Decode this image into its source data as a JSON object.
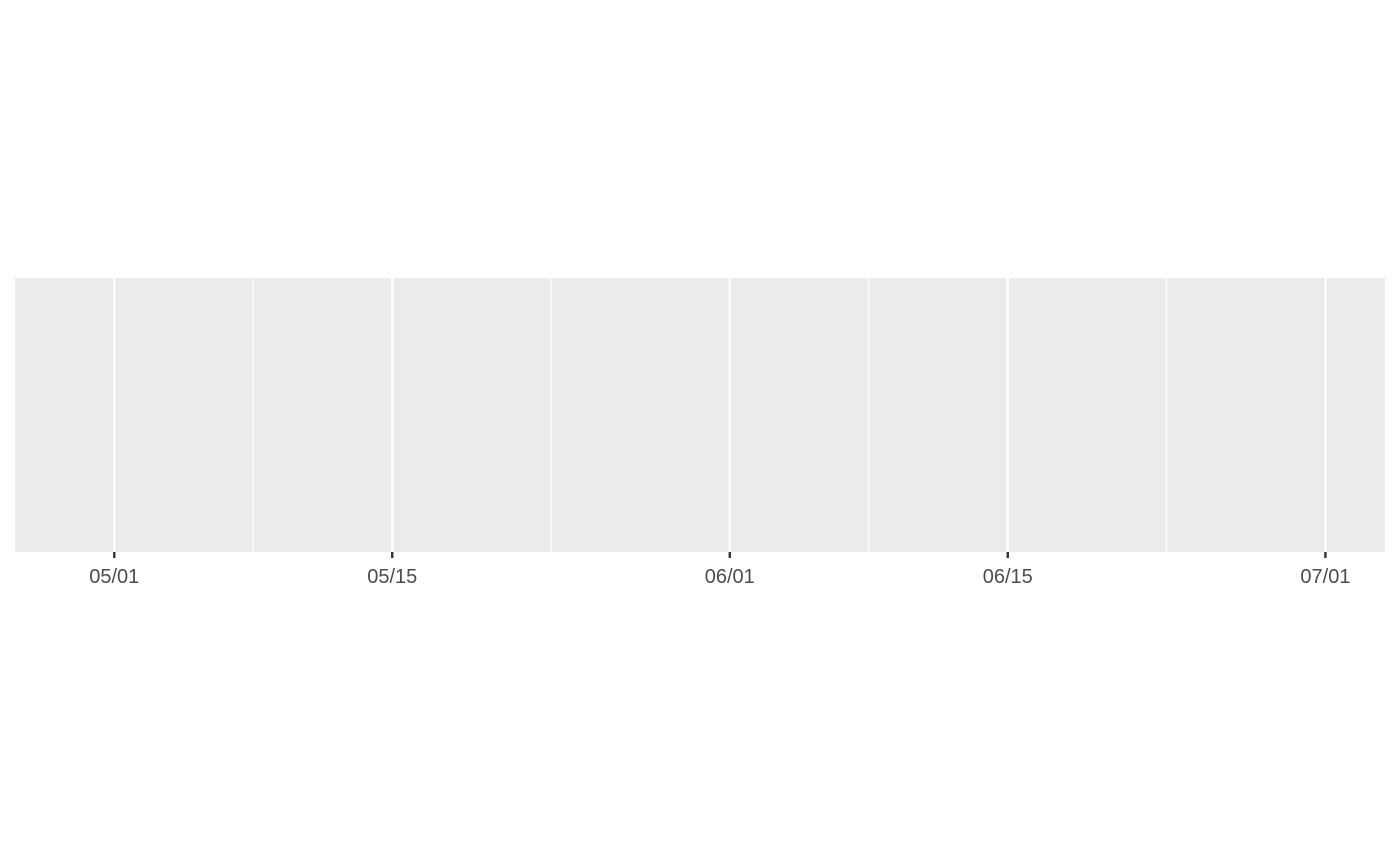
{
  "chart_data": {
    "type": "line",
    "title": "",
    "xlabel": "",
    "ylabel": "",
    "x_axis": {
      "scale": "date",
      "range": [
        "2019-04-26",
        "2019-07-04"
      ],
      "major_ticks": [
        {
          "value": "2019-05-01",
          "label": "05/01"
        },
        {
          "value": "2019-05-15",
          "label": "05/15"
        },
        {
          "value": "2019-06-01",
          "label": "06/01"
        },
        {
          "value": "2019-06-15",
          "label": "06/15"
        },
        {
          "value": "2019-07-01",
          "label": "07/01"
        }
      ],
      "minor_gridlines": [
        "2019-05-08",
        "2019-05-23",
        "2019-06-08",
        "2019-06-23"
      ]
    },
    "y_axis": {
      "visible": false
    },
    "series": [],
    "grid": true,
    "legend": "none",
    "colors": {
      "panel_background": "#EBEBEB",
      "gridline": "#FFFFFF",
      "tick_mark": "#333333",
      "tick_label": "#4D4D4D"
    }
  }
}
